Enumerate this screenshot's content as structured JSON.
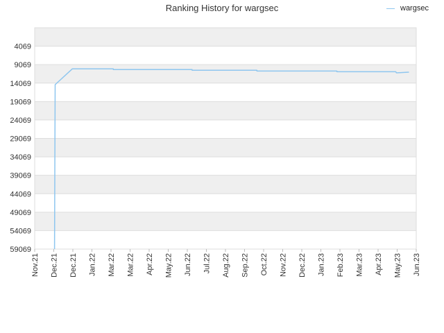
{
  "chart_data": {
    "type": "line",
    "title": "Ranking History for wargsec",
    "xlabel": "",
    "ylabel": "",
    "y_inverted": true,
    "ylim": [
      59069,
      -931
    ],
    "grid": true,
    "legend": "top-right",
    "x_tick_labels": [
      "Nov.21",
      "Dec.21",
      "Dec.21",
      "Jan.22",
      "Mar.22",
      "Mar.22",
      "Apr.22",
      "May.22",
      "Jun.22",
      "Jul.22",
      "Aug.22",
      "Sep.22",
      "Oct.22",
      "Nov.22",
      "Dec.22",
      "Jan.23",
      "Feb.23",
      "Mar.23",
      "Apr.23",
      "May.23",
      "Jun.23"
    ],
    "y_tick_labels": [
      "4069",
      "9069",
      "14069",
      "19069",
      "24069",
      "29069",
      "34069",
      "39069",
      "44069",
      "49069",
      "54069",
      "59069"
    ],
    "y_tick_values": [
      4069,
      9069,
      14069,
      19069,
      24069,
      29069,
      34069,
      39069,
      44069,
      49069,
      54069,
      59069
    ],
    "series": [
      {
        "name": "wargsec",
        "color": "#8ec6ef",
        "x": [
          "2021-12-01",
          "2021-12-02",
          "2021-12-28",
          "2022-02-28",
          "2022-02-28",
          "2022-06-27",
          "2022-06-27",
          "2022-10-03",
          "2022-10-03",
          "2023-02-01",
          "2023-02-01",
          "2023-05-01",
          "2023-05-02",
          "2023-05-21"
        ],
        "y": [
          59069,
          14500,
          10200,
          10200,
          10400,
          10400,
          10600,
          10600,
          10800,
          10800,
          11000,
          11000,
          11300,
          11100
        ]
      }
    ]
  }
}
